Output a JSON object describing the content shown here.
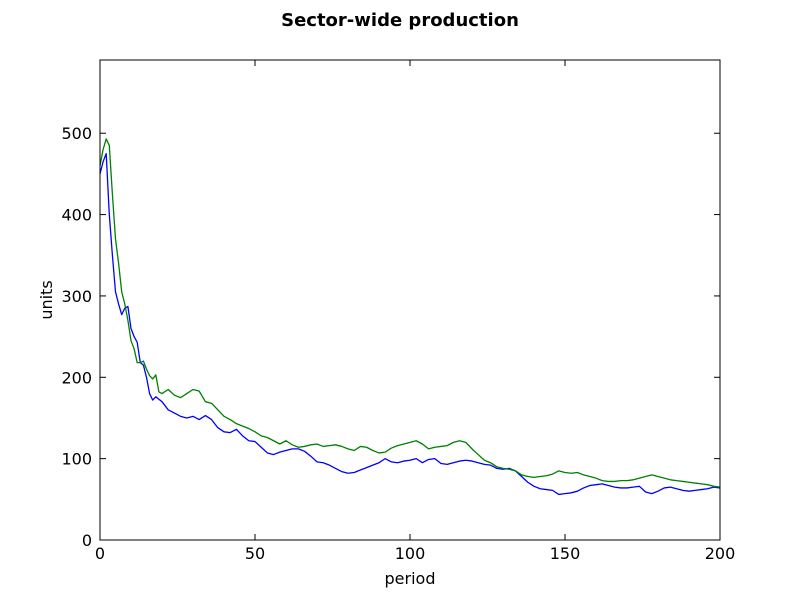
{
  "chart_data": {
    "type": "line",
    "title": "Sector-wide production",
    "xlabel": "period",
    "ylabel": "units",
    "xlim": [
      0,
      200
    ],
    "ylim": [
      0,
      590
    ],
    "xticks": [
      0,
      50,
      100,
      150,
      200
    ],
    "yticks": [
      0,
      100,
      200,
      300,
      400,
      500
    ],
    "grid": false,
    "legend": "none",
    "series": [
      {
        "color": "#0000ff",
        "x": [
          0,
          1,
          2,
          3,
          4,
          5,
          6,
          7,
          8,
          9,
          10,
          11,
          12,
          13,
          14,
          15,
          16,
          17,
          18,
          19,
          20,
          22,
          24,
          26,
          28,
          30,
          32,
          34,
          36,
          38,
          40,
          42,
          44,
          46,
          48,
          50,
          52,
          54,
          56,
          58,
          60,
          62,
          64,
          66,
          68,
          70,
          72,
          74,
          76,
          78,
          80,
          82,
          84,
          86,
          88,
          90,
          92,
          94,
          96,
          98,
          100,
          102,
          104,
          106,
          108,
          110,
          112,
          114,
          116,
          118,
          120,
          122,
          124,
          126,
          128,
          130,
          132,
          134,
          136,
          138,
          140,
          142,
          144,
          146,
          148,
          150,
          152,
          154,
          156,
          158,
          160,
          162,
          164,
          166,
          168,
          170,
          172,
          174,
          176,
          178,
          180,
          182,
          184,
          186,
          188,
          190,
          192,
          194,
          196,
          198,
          200
        ],
        "values": [
          450,
          465,
          475,
          400,
          350,
          305,
          290,
          277,
          285,
          287,
          260,
          250,
          243,
          218,
          215,
          200,
          180,
          172,
          176,
          173,
          170,
          160,
          156,
          152,
          150,
          152,
          148,
          153,
          148,
          138,
          133,
          132,
          136,
          128,
          122,
          121,
          114,
          107,
          105,
          108,
          110,
          112,
          112,
          109,
          103,
          96,
          95,
          92,
          88,
          84,
          82,
          83,
          86,
          89,
          92,
          95,
          100,
          96,
          95,
          97,
          98,
          100,
          95,
          99,
          100,
          94,
          93,
          95,
          97,
          98,
          97,
          95,
          93,
          92,
          88,
          87,
          88,
          85,
          78,
          71,
          66,
          63,
          62,
          61,
          56,
          57,
          58,
          60,
          64,
          67,
          68,
          69,
          67,
          65,
          64,
          64,
          65,
          66,
          59,
          57,
          60,
          64,
          65,
          63,
          61,
          60,
          61,
          62,
          63,
          65,
          64
        ]
      },
      {
        "color": "#008000",
        "x": [
          0,
          1,
          2,
          3,
          4,
          5,
          6,
          7,
          8,
          9,
          10,
          11,
          12,
          13,
          14,
          15,
          16,
          17,
          18,
          19,
          20,
          22,
          24,
          26,
          28,
          30,
          32,
          34,
          36,
          38,
          40,
          42,
          44,
          46,
          48,
          50,
          52,
          54,
          56,
          58,
          60,
          62,
          64,
          66,
          68,
          70,
          72,
          74,
          76,
          78,
          80,
          82,
          84,
          86,
          88,
          90,
          92,
          94,
          96,
          98,
          100,
          102,
          104,
          106,
          108,
          110,
          112,
          114,
          116,
          118,
          120,
          122,
          124,
          126,
          128,
          130,
          132,
          134,
          136,
          138,
          140,
          142,
          144,
          146,
          148,
          150,
          152,
          154,
          156,
          158,
          160,
          162,
          164,
          166,
          168,
          170,
          172,
          174,
          176,
          178,
          180,
          182,
          184,
          186,
          188,
          190,
          192,
          194,
          196,
          198,
          200
        ],
        "values": [
          460,
          480,
          493,
          485,
          425,
          370,
          340,
          305,
          290,
          270,
          245,
          235,
          218,
          218,
          220,
          210,
          202,
          198,
          203,
          182,
          180,
          185,
          178,
          175,
          180,
          185,
          183,
          170,
          168,
          160,
          152,
          148,
          143,
          140,
          137,
          133,
          128,
          126,
          122,
          118,
          122,
          117,
          114,
          115,
          117,
          118,
          115,
          116,
          117,
          115,
          112,
          110,
          115,
          114,
          110,
          107,
          108,
          113,
          116,
          118,
          120,
          122,
          118,
          112,
          114,
          115,
          116,
          120,
          122,
          120,
          112,
          105,
          98,
          95,
          90,
          88,
          87,
          85,
          80,
          78,
          77,
          78,
          79,
          81,
          85,
          83,
          82,
          83,
          80,
          78,
          76,
          73,
          72,
          72,
          73,
          73,
          74,
          76,
          78,
          80,
          78,
          76,
          74,
          73,
          72,
          71,
          70,
          69,
          68,
          66,
          65
        ]
      }
    ]
  }
}
